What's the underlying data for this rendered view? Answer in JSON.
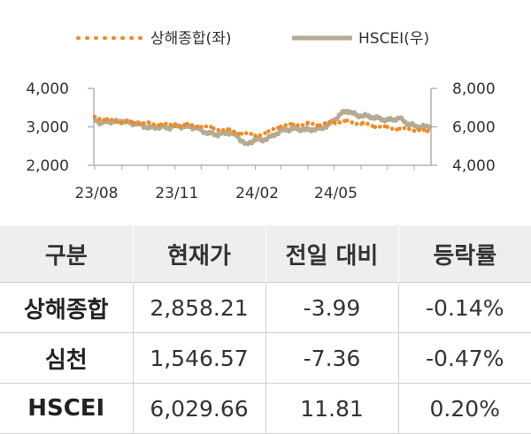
{
  "chart_data": {
    "type": "line",
    "legend_position": "top",
    "grid": false,
    "x_ticks": [
      "23/08",
      "23/11",
      "24/02",
      "24/05"
    ],
    "x_range": [
      "2023-07-31",
      "2024-08-20"
    ],
    "y_left": {
      "range": [
        2000,
        4000
      ],
      "ticks": [
        "4,000",
        "3,000",
        "2,000"
      ]
    },
    "y_right": {
      "range": [
        4000,
        8000
      ],
      "ticks": [
        "8,000",
        "6,000",
        "4,000"
      ]
    },
    "series": [
      {
        "name": "상해종합(좌)",
        "axis": "left",
        "color": "#f08a24",
        "style": "dotted",
        "points": [
          [
            "2023-08-01",
            3260
          ],
          [
            "2023-08-15",
            3180
          ],
          [
            "2023-09-01",
            3120
          ],
          [
            "2023-09-15",
            3110
          ],
          [
            "2023-10-02",
            3090
          ],
          [
            "2023-10-16",
            3060
          ],
          [
            "2023-11-01",
            3040
          ],
          [
            "2023-11-15",
            3050
          ],
          [
            "2023-12-01",
            3020
          ],
          [
            "2023-12-15",
            2960
          ],
          [
            "2024-01-02",
            2910
          ],
          [
            "2024-01-16",
            2830
          ],
          [
            "2024-02-01",
            2780
          ],
          [
            "2024-02-16",
            2860
          ],
          [
            "2024-03-01",
            3030
          ],
          [
            "2024-03-15",
            3050
          ],
          [
            "2024-04-01",
            3080
          ],
          [
            "2024-04-15",
            3060
          ],
          [
            "2024-05-02",
            3120
          ],
          [
            "2024-05-16",
            3140
          ],
          [
            "2024-06-03",
            3080
          ],
          [
            "2024-06-17",
            3020
          ],
          [
            "2024-07-01",
            2980
          ],
          [
            "2024-07-15",
            2950
          ],
          [
            "2024-08-01",
            2920
          ],
          [
            "2024-08-16",
            2880
          ]
        ]
      },
      {
        "name": "HSCEI(우)",
        "axis": "right",
        "color": "#b6aa92",
        "style": "solid",
        "points": [
          [
            "2023-08-01",
            6450
          ],
          [
            "2023-08-08",
            6150
          ],
          [
            "2023-08-15",
            6300
          ],
          [
            "2023-08-22",
            6250
          ],
          [
            "2023-09-01",
            6300
          ],
          [
            "2023-09-11",
            6200
          ],
          [
            "2023-09-20",
            6150
          ],
          [
            "2023-10-02",
            5950
          ],
          [
            "2023-10-16",
            6000
          ],
          [
            "2023-10-25",
            5950
          ],
          [
            "2023-11-01",
            6050
          ],
          [
            "2023-11-15",
            6000
          ],
          [
            "2023-11-27",
            5950
          ],
          [
            "2023-12-01",
            5800
          ],
          [
            "2023-12-11",
            5650
          ],
          [
            "2023-12-20",
            5600
          ],
          [
            "2024-01-02",
            5700
          ],
          [
            "2024-01-10",
            5550
          ],
          [
            "2024-01-22",
            5050
          ],
          [
            "2024-01-31",
            5350
          ],
          [
            "2024-02-08",
            5300
          ],
          [
            "2024-02-20",
            5500
          ],
          [
            "2024-03-01",
            5800
          ],
          [
            "2024-03-15",
            5900
          ],
          [
            "2024-04-01",
            5850
          ],
          [
            "2024-04-15",
            5900
          ],
          [
            "2024-04-25",
            6100
          ],
          [
            "2024-05-02",
            6400
          ],
          [
            "2024-05-10",
            6700
          ],
          [
            "2024-05-16",
            6850
          ],
          [
            "2024-05-27",
            6600
          ],
          [
            "2024-06-10",
            6550
          ],
          [
            "2024-06-20",
            6450
          ],
          [
            "2024-07-01",
            6350
          ],
          [
            "2024-07-15",
            6450
          ],
          [
            "2024-07-25",
            6150
          ],
          [
            "2024-08-05",
            6000
          ],
          [
            "2024-08-19",
            6020
          ]
        ]
      }
    ]
  },
  "table": {
    "headers": [
      "구분",
      "현재가",
      "전일 대비",
      "등락률"
    ],
    "rows": [
      [
        "상해종합",
        "2,858.21",
        "-3.99",
        "-0.14%"
      ],
      [
        "심천",
        "1,546.57",
        "-7.36",
        "-0.47%"
      ],
      [
        "HSCEI",
        "6,029.66",
        "11.81",
        "0.20%"
      ]
    ]
  }
}
